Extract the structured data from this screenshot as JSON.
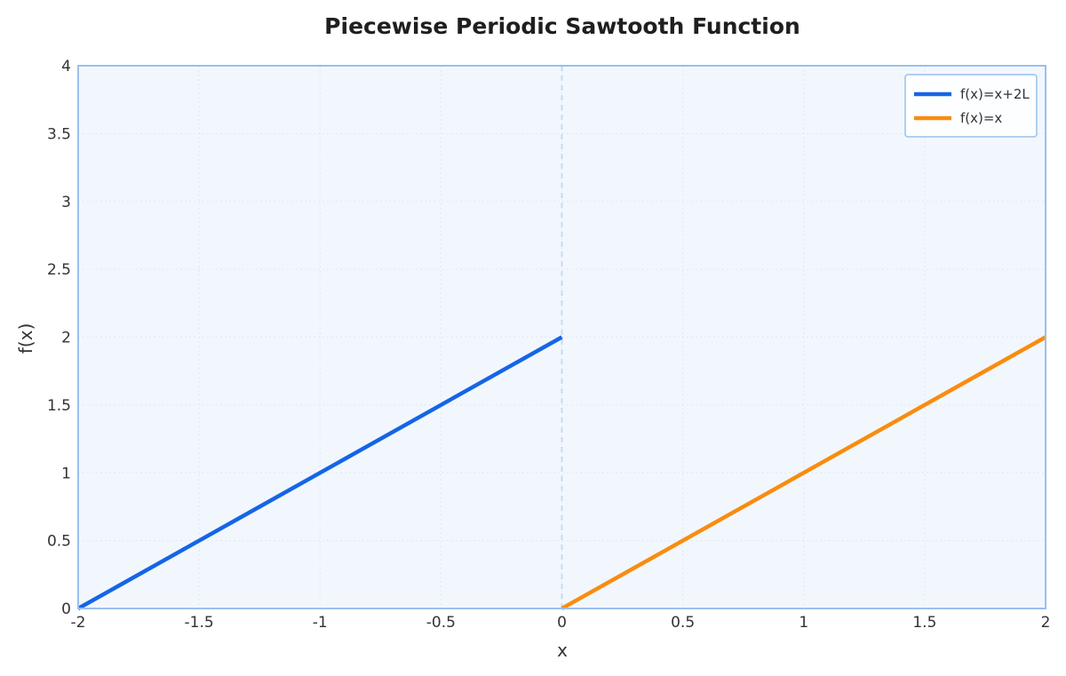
{
  "chart_data": {
    "type": "line",
    "title": "Piecewise Periodic Sawtooth Function",
    "xlabel": "x",
    "ylabel": "f(x)",
    "xlim": [
      -2,
      2
    ],
    "ylim": [
      0,
      4
    ],
    "x_ticks": [
      -2,
      -1.5,
      -1,
      -0.5,
      0,
      0.5,
      1,
      1.5,
      2
    ],
    "x_tick_labels": [
      "-2",
      "-1.5",
      "-1",
      "-0.5",
      "0",
      "0.5",
      "1",
      "1.5",
      "2"
    ],
    "y_ticks": [
      0,
      0.5,
      1,
      1.5,
      2,
      2.5,
      3,
      3.5,
      4
    ],
    "y_tick_labels": [
      "0",
      "0.5",
      "1",
      "1.5",
      "2",
      "2.5",
      "3",
      "3.5",
      "4"
    ],
    "grid": true,
    "legend_position": "top-right",
    "reference_line": {
      "axis": "x",
      "value": 0,
      "style": "dashed",
      "color": "#c6dbf3"
    },
    "series": [
      {
        "name": "f(x)=x+2L",
        "color": "#1565e6",
        "x": [
          -2,
          0
        ],
        "y": [
          0,
          2
        ]
      },
      {
        "name": "f(x)=x",
        "color": "#f98c0f",
        "x": [
          0,
          2
        ],
        "y": [
          0,
          2
        ]
      }
    ],
    "colors": {
      "plot_background": "#f2f7fe",
      "plot_border": "#9ac0ee",
      "grid": "#dde8f6"
    }
  }
}
